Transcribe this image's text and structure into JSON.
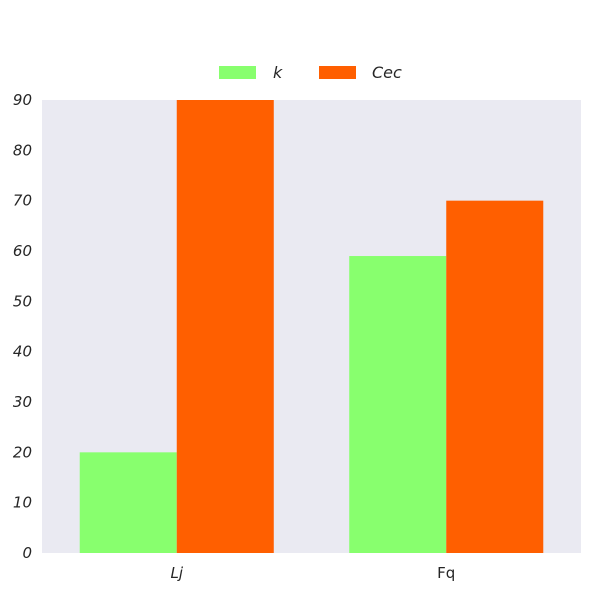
{
  "chart_data": {
    "type": "bar",
    "categories": [
      "Lj",
      "Fq"
    ],
    "series": [
      {
        "name": "k",
        "values": [
          20,
          59
        ],
        "color": "#88ff6e"
      },
      {
        "name": "Cec",
        "values": [
          90,
          70
        ],
        "color": "#ff5f00"
      }
    ],
    "ylim": [
      0,
      90
    ],
    "yticks": [
      "0",
      "10",
      "20",
      "30",
      "40",
      "50",
      "60",
      "70",
      "80",
      "90"
    ],
    "grid": false,
    "legend_position": "top-center",
    "background": "#eaeaf2"
  }
}
